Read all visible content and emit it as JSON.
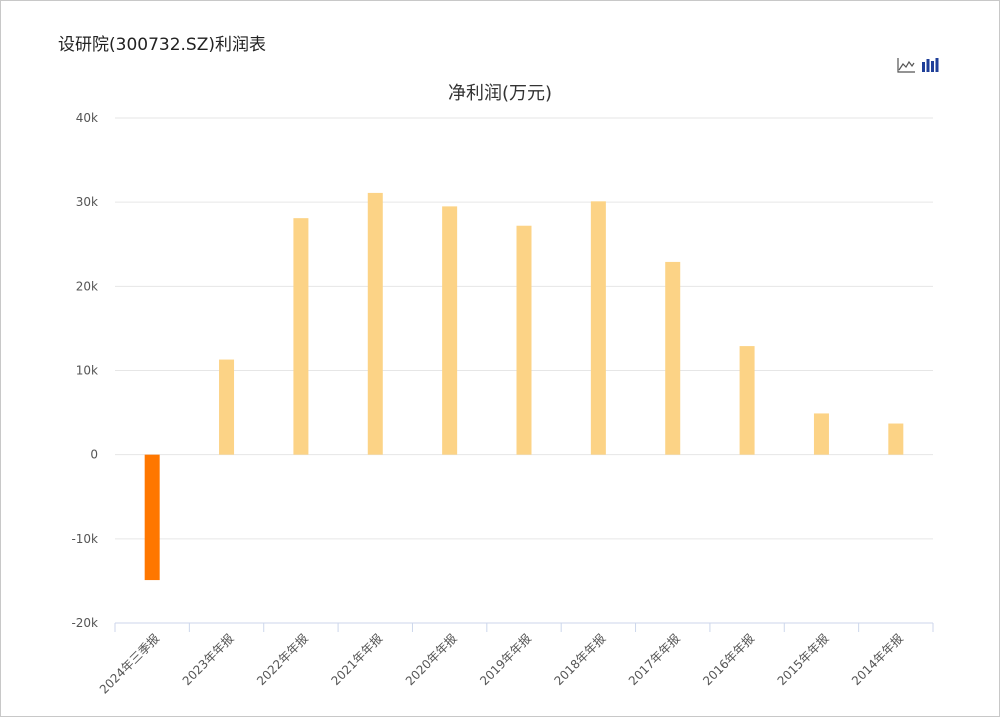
{
  "page": {
    "title": "设研院(300732.SZ)利润表"
  },
  "toolbar": {
    "line_icon": "line-chart-icon",
    "bar_icon": "bar-chart-icon"
  },
  "colors": {
    "bar": "#fcd386",
    "bar_negative": "#ff7700",
    "grid": "#e6e6e6",
    "axis": "#ccd6eb",
    "active_icon": "#1f3f99",
    "inactive_icon": "#555555"
  },
  "chart_data": {
    "type": "bar",
    "title": "净利润(万元)",
    "categories": [
      "2024年三季报",
      "2023年年报",
      "2022年年报",
      "2021年年报",
      "2020年年报",
      "2019年年报",
      "2018年年报",
      "2017年年报",
      "2016年年报",
      "2015年年报",
      "2014年年报"
    ],
    "values": [
      -14900,
      11300,
      28100,
      31100,
      29500,
      27200,
      30100,
      22900,
      12900,
      4900,
      3700
    ],
    "ylim": [
      -20000,
      40000
    ],
    "yticks": [
      -20000,
      -10000,
      0,
      10000,
      20000,
      30000,
      40000
    ],
    "ytick_labels": [
      "-20k",
      "-10k",
      "0",
      "10k",
      "20k",
      "30k",
      "40k"
    ],
    "grid": true,
    "legend": "none"
  }
}
